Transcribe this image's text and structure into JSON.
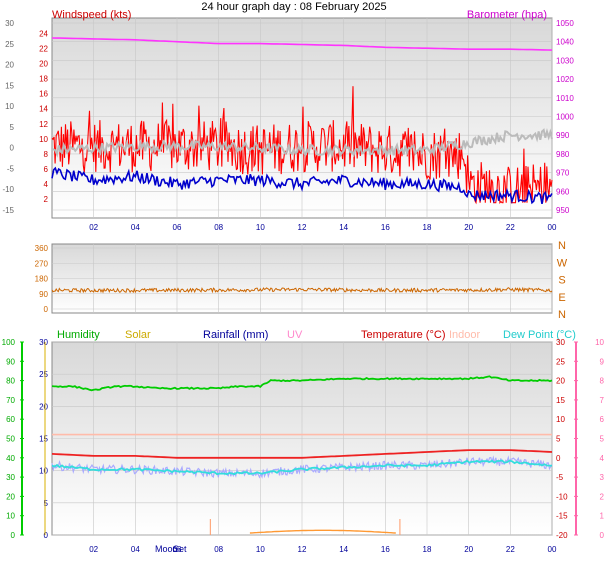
{
  "title": "24 hour graph day : 08 February 2025",
  "x_ticks": [
    "02",
    "04",
    "06",
    "08",
    "10",
    "12",
    "14",
    "16",
    "18",
    "20",
    "22",
    "00"
  ],
  "colors": {
    "wind": "#ff0000",
    "gust_line": "#0000cc",
    "grey_series": "#bbbbbb",
    "baro": "#ff33ff",
    "direction": "#cc6600",
    "humidity": "#00cc00",
    "solar": "#d9b200",
    "rain": "#000099",
    "uv": "#ff99cc",
    "temperature": "#ee2222",
    "indoor": "#ffbbaa",
    "dewpoint": "#33dddd",
    "dew_light": "#aaaaff"
  },
  "chart_data": [
    {
      "type": "line",
      "title": "24 hour graph day : 08 February 2025",
      "left_label": "Windspeed (kts)",
      "right_label": "Barometer (hpa)",
      "left_ticks": [
        "24",
        "22",
        "20",
        "18",
        "16",
        "14",
        "12",
        "10",
        "8",
        "6",
        "4",
        "2"
      ],
      "outer_left_ticks": [
        "30",
        "25",
        "20",
        "15",
        "10",
        "5",
        "0",
        "-5",
        "-10",
        "-15"
      ],
      "right_ticks": [
        "1050",
        "1040",
        "1030",
        "1020",
        "1010",
        "1000",
        "990",
        "980",
        "970",
        "960",
        "950"
      ],
      "ylim_left": [
        0,
        25
      ],
      "ylim_right": [
        950,
        1050
      ],
      "series": [
        {
          "x": [
            0,
            2,
            4,
            6,
            8,
            10,
            12,
            14,
            16,
            18,
            19.8,
            20,
            22,
            24
          ],
          "values": [
            9,
            9,
            9,
            9,
            9,
            8.5,
            9,
            9,
            8.5,
            8,
            8,
            4,
            3,
            3.5
          ]
        },
        {
          "x": [
            0,
            2,
            4,
            6,
            8,
            10,
            12,
            14,
            16,
            18,
            19.8,
            20,
            22,
            24
          ],
          "values": [
            5.5,
            4.5,
            5,
            4,
            4.5,
            4.5,
            4,
            4.5,
            4,
            4,
            3.5,
            2.5,
            2.5,
            2
          ]
        },
        {
          "x": [
            0,
            4,
            8,
            12,
            16,
            18,
            20,
            22,
            24
          ],
          "values": [
            8.5,
            9,
            9,
            8.5,
            8.5,
            8.5,
            9.5,
            10.5,
            10.5
          ]
        },
        {
          "x": [
            0,
            2,
            4,
            6,
            8,
            10,
            12,
            14,
            16,
            18,
            20,
            22,
            24
          ],
          "values": [
            1042,
            1041.5,
            1041,
            1040,
            1039,
            1039,
            1038.5,
            1038,
            1037,
            1036.5,
            1036,
            1036,
            1035.5
          ]
        }
      ]
    },
    {
      "type": "scatter",
      "left_ticks": [
        "360",
        "270",
        "180",
        "90",
        "0"
      ],
      "right_ticks": [
        "N",
        "W",
        "S",
        "E",
        "N"
      ],
      "ylim": [
        0,
        360
      ],
      "series": [
        {
          "x": [
            0,
            4,
            8,
            12,
            16,
            20,
            22,
            24
          ],
          "values": [
            110,
            110,
            112,
            115,
            110,
            112,
            115,
            110
          ]
        }
      ]
    },
    {
      "type": "line",
      "legend": [
        "Humidity",
        "Solar",
        "Rainfall (mm)",
        "UV",
        "Temperature (°C)",
        "Indoor",
        "Dew Point (°C)"
      ],
      "humidity_ticks": [
        "100",
        "90",
        "80",
        "70",
        "60",
        "50",
        "40",
        "30",
        "20",
        "10",
        "0"
      ],
      "rain_ticks": [
        "30",
        "25",
        "20",
        "15",
        "10",
        "5",
        "0"
      ],
      "temp_ticks": [
        "30",
        "25",
        "20",
        "15",
        "10",
        "5",
        "0",
        "-5",
        "-10",
        "-15",
        "-20"
      ],
      "uv_ticks": [
        "10",
        "9",
        "8",
        "7",
        "6",
        "5",
        "4",
        "3",
        "2",
        "1",
        "0"
      ],
      "moon_label": "Moon",
      "set_label": "Set",
      "ylim_humidity": [
        0,
        100
      ],
      "ylim_temperature": [
        -20,
        30
      ],
      "series": [
        {
          "x": [
            0,
            1,
            2,
            3,
            4,
            5,
            6,
            7,
            8,
            9,
            10,
            10.5,
            11,
            12,
            14,
            16,
            18,
            20,
            21,
            22,
            23,
            24
          ],
          "values": [
            77,
            77,
            75,
            77,
            77,
            76,
            76,
            76,
            76,
            77,
            77,
            80,
            80,
            80,
            81,
            81,
            81,
            81,
            82,
            80,
            80,
            80
          ]
        },
        {
          "x": [
            0,
            4,
            8,
            12,
            16,
            20,
            24
          ],
          "values": [
            6,
            6,
            6,
            6,
            6,
            6,
            6
          ]
        },
        {
          "x": [
            0,
            2,
            4,
            6,
            8,
            10,
            12,
            14,
            16,
            18,
            20,
            22,
            24
          ],
          "values": [
            1,
            0.5,
            0.5,
            0,
            0,
            0,
            0,
            0.5,
            1,
            1.5,
            2,
            2,
            1.5
          ]
        },
        {
          "x": [
            0,
            2,
            4,
            6,
            8,
            10,
            12,
            14,
            16,
            18,
            20,
            22,
            24
          ],
          "values": [
            -2,
            -3,
            -3,
            -3.5,
            -4,
            -4,
            -3,
            -2.5,
            -2,
            -2,
            -1,
            -1,
            -2
          ]
        }
      ]
    }
  ]
}
